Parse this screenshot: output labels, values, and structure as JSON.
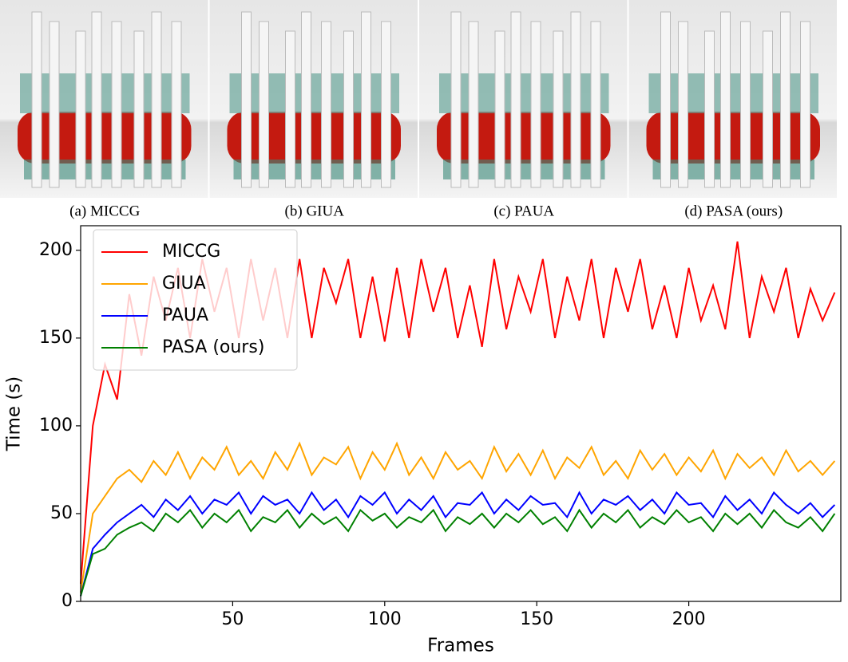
{
  "panels": [
    {
      "caption": "(a) MICCG"
    },
    {
      "caption": "(b) GIUA"
    },
    {
      "caption": "(c) PAUA"
    },
    {
      "caption": "(d) PASA (ours)"
    }
  ],
  "chart_data": {
    "type": "line",
    "x_label": "Frames",
    "y_label": "Time (s)",
    "x": [
      0,
      4,
      8,
      12,
      16,
      20,
      24,
      28,
      32,
      36,
      40,
      44,
      48,
      52,
      56,
      60,
      64,
      68,
      72,
      76,
      80,
      84,
      88,
      92,
      96,
      100,
      104,
      108,
      112,
      116,
      120,
      124,
      128,
      132,
      136,
      140,
      144,
      148,
      152,
      156,
      160,
      164,
      168,
      172,
      176,
      180,
      184,
      188,
      192,
      196,
      200,
      204,
      208,
      212,
      216,
      220,
      224,
      228,
      232,
      236,
      240,
      244,
      248
    ],
    "series": [
      {
        "name": "MICCG",
        "color": "#ff0000",
        "values": [
          10,
          100,
          135,
          115,
          175,
          140,
          185,
          160,
          190,
          150,
          195,
          165,
          190,
          150,
          195,
          160,
          190,
          150,
          195,
          150,
          190,
          170,
          195,
          150,
          185,
          148,
          190,
          150,
          195,
          165,
          190,
          150,
          180,
          145,
          195,
          155,
          185,
          165,
          195,
          150,
          185,
          160,
          195,
          150,
          190,
          165,
          195,
          155,
          180,
          150,
          190,
          160,
          180,
          155,
          205,
          150,
          185,
          165,
          190,
          150,
          178,
          160,
          176
        ]
      },
      {
        "name": "GIUA",
        "color": "#ffa500",
        "values": [
          5,
          50,
          60,
          70,
          75,
          68,
          80,
          72,
          85,
          70,
          82,
          75,
          88,
          72,
          80,
          70,
          85,
          75,
          90,
          72,
          82,
          78,
          88,
          70,
          85,
          75,
          90,
          72,
          82,
          70,
          85,
          75,
          80,
          70,
          88,
          74,
          84,
          72,
          86,
          70,
          82,
          76,
          88,
          72,
          80,
          70,
          86,
          75,
          84,
          72,
          82,
          74,
          86,
          70,
          84,
          76,
          82,
          72,
          86,
          74,
          80,
          72,
          80
        ]
      },
      {
        "name": "PAUA",
        "color": "#0000ff",
        "values": [
          3,
          30,
          38,
          45,
          50,
          55,
          48,
          58,
          52,
          60,
          50,
          58,
          55,
          62,
          50,
          60,
          55,
          58,
          50,
          62,
          52,
          58,
          48,
          60,
          55,
          62,
          50,
          58,
          52,
          60,
          48,
          56,
          55,
          62,
          50,
          58,
          52,
          60,
          55,
          56,
          48,
          62,
          50,
          58,
          55,
          60,
          52,
          58,
          50,
          62,
          55,
          56,
          48,
          60,
          52,
          58,
          50,
          62,
          55,
          50,
          56,
          48,
          55
        ]
      },
      {
        "name": "PASA (ours)",
        "color": "#008000",
        "values": [
          3,
          27,
          30,
          38,
          42,
          45,
          40,
          50,
          45,
          52,
          42,
          50,
          45,
          52,
          40,
          48,
          45,
          52,
          42,
          50,
          44,
          48,
          40,
          52,
          46,
          50,
          42,
          48,
          45,
          52,
          40,
          48,
          44,
          50,
          42,
          50,
          45,
          52,
          44,
          48,
          40,
          52,
          42,
          50,
          45,
          52,
          42,
          48,
          44,
          52,
          45,
          48,
          40,
          50,
          44,
          50,
          42,
          52,
          45,
          42,
          48,
          40,
          50
        ]
      }
    ],
    "xlim": [
      0,
      250
    ],
    "ylim": [
      0,
      214
    ],
    "xticks": [
      50,
      100,
      150,
      200
    ],
    "yticks": [
      0,
      50,
      100,
      150,
      200
    ],
    "legend": "upper left"
  }
}
